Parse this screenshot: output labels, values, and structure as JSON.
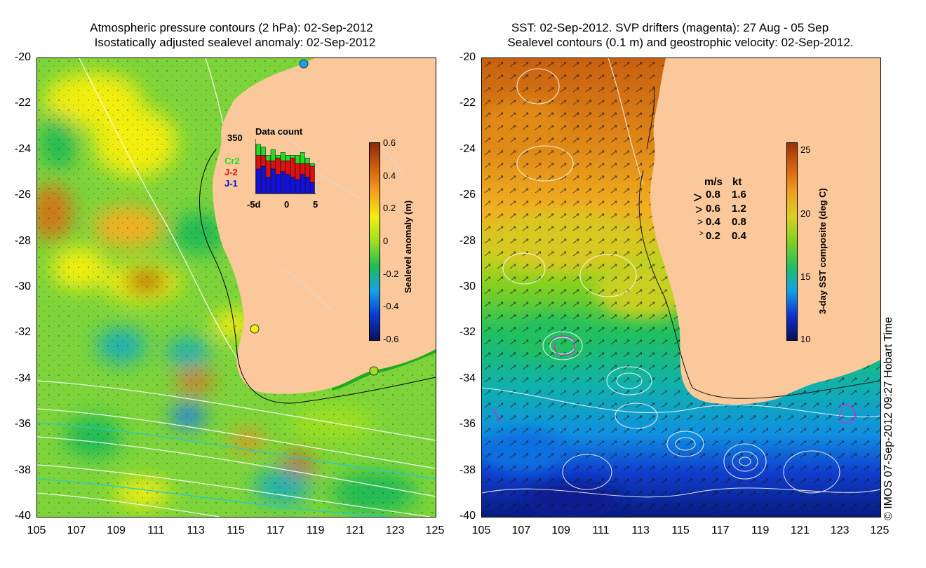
{
  "left_panel": {
    "title_line1": "Atmospheric pressure contours (2 hPa): 02-Sep-2012",
    "title_line2": "Isostatically adjusted sealevel anomaly: 02-Sep-2012",
    "colorbar": {
      "label": "Sealevel anomaly (m)",
      "ticks": [
        "0.6",
        "0.4",
        "0.2",
        "0",
        "-0.2",
        "-0.4",
        "-0.6"
      ],
      "range": [
        -0.6,
        0.6
      ]
    },
    "inset": {
      "max_label": "350",
      "title": "Data count",
      "legend": [
        {
          "label": "Cr2",
          "color": "#22dd22"
        },
        {
          "label": "J-2",
          "color": "#e01010"
        },
        {
          "label": "J-1",
          "color": "#1010e0"
        }
      ],
      "x_ticks": [
        "-5d",
        "0",
        "5"
      ],
      "bars": [
        {
          "blue": 0.45,
          "red": 0.25,
          "green": 0.2
        },
        {
          "blue": 0.5,
          "red": 0.2,
          "green": 0.15
        },
        {
          "blue": 0.3,
          "red": 0.3,
          "green": 0.1
        },
        {
          "blue": 0.45,
          "red": 0.15,
          "green": 0.2
        },
        {
          "blue": 0.35,
          "red": 0.3,
          "green": 0.05
        },
        {
          "blue": 0.4,
          "red": 0.2,
          "green": 0.15
        },
        {
          "blue": 0.35,
          "red": 0.25,
          "green": 0.1
        },
        {
          "blue": 0.3,
          "red": 0.35,
          "green": 0.05
        },
        {
          "blue": 0.25,
          "red": 0.3,
          "green": 0.15
        },
        {
          "blue": 0.35,
          "red": 0.2,
          "green": 0.2
        },
        {
          "blue": 0.3,
          "red": 0.25,
          "green": 0.1
        },
        {
          "blue": 0.2,
          "red": 0.3,
          "green": 0.05
        }
      ]
    }
  },
  "right_panel": {
    "title_line1": "SST: 02-Sep-2012. SVP drifters (magenta): 27 Aug - 05 Sep",
    "title_line2": "Sealevel contours (0.1 m) and geostrophic velocity: 02-Sep-2012.",
    "colorbar": {
      "label": "3-day SST composite (deg C)",
      "ticks": [
        "25",
        "20",
        "15",
        "10"
      ],
      "range": [
        10,
        25.5
      ]
    },
    "velocity_legend": {
      "header_ms": "m/s",
      "header_kt": "kt",
      "rows": [
        {
          "ms": "0.8",
          "kt": "1.6"
        },
        {
          "ms": "0.6",
          "kt": "1.2"
        },
        {
          "ms": "0.4",
          "kt": "0.8"
        },
        {
          "ms": "0.2",
          "kt": "0.4"
        }
      ]
    }
  },
  "axes": {
    "y_ticks": [
      "-20",
      "-22",
      "-24",
      "-26",
      "-28",
      "-30",
      "-32",
      "-34",
      "-36",
      "-38",
      "-40"
    ],
    "x_ticks": [
      "105",
      "107",
      "109",
      "111",
      "113",
      "115",
      "117",
      "119",
      "121",
      "123",
      "125"
    ]
  },
  "credit": "© IMOS 07-Sep-2012 09:27 Hobart Time",
  "colors": {
    "land": "#fac89a",
    "sla_ramp": [
      "#08105e",
      "#0a3ad0",
      "#19a0e8",
      "#22bb55",
      "#9ee020",
      "#f2ee10",
      "#f5a020",
      "#d06010",
      "#8a2a08"
    ],
    "sst_ramp": [
      "#06105a",
      "#1030d0",
      "#10a0e8",
      "#20c060",
      "#80d020",
      "#d8d020",
      "#f0a020",
      "#d86010",
      "#9a3008"
    ]
  }
}
